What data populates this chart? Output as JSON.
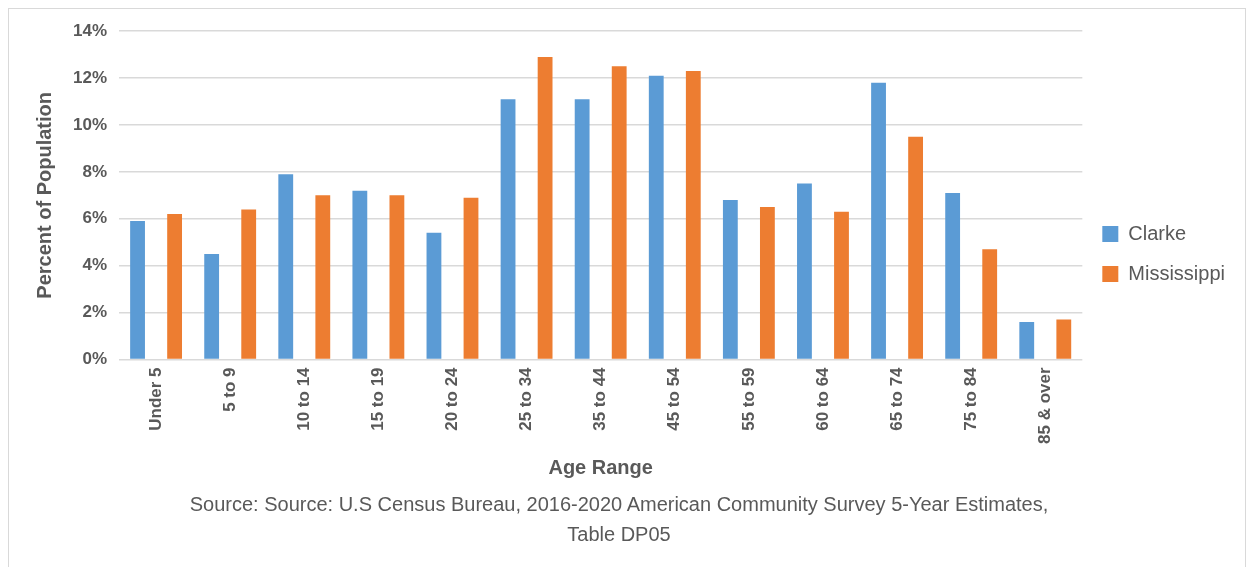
{
  "chart_data": {
    "type": "bar",
    "xlabel": "Age Range",
    "ylabel": "Percent of Population",
    "categories": [
      "Under 5",
      "5 to 9",
      "10 to 14",
      "15 to 19",
      "20 to 24",
      "25 to 34",
      "35 to 44",
      "45 to 54",
      "55 to 59",
      "60 to 64",
      "65 to 74",
      "75 to 84",
      "85 & over"
    ],
    "series": [
      {
        "name": "Clarke",
        "color": "#5b9bd5",
        "values": [
          5.9,
          4.5,
          7.9,
          7.2,
          5.4,
          11.1,
          11.1,
          12.1,
          6.8,
          7.5,
          11.8,
          7.1,
          1.6
        ]
      },
      {
        "name": "Mississippi",
        "color": "#ed7d31",
        "values": [
          6.2,
          6.4,
          7.0,
          7.0,
          6.9,
          12.9,
          12.5,
          12.3,
          6.5,
          6.3,
          9.5,
          4.7,
          1.7
        ]
      }
    ],
    "ylim": [
      0,
      14
    ],
    "yticks": [
      {
        "value": 0,
        "label": "0%"
      },
      {
        "value": 2,
        "label": "2%"
      },
      {
        "value": 4,
        "label": "4%"
      },
      {
        "value": 6,
        "label": "6%"
      },
      {
        "value": 8,
        "label": "8%"
      },
      {
        "value": 10,
        "label": "10%"
      },
      {
        "value": 12,
        "label": "12%"
      },
      {
        "value": 14,
        "label": "14%"
      }
    ],
    "grid": "y",
    "legend": "right",
    "annotations": [
      "Source: Source: U.S Census Bureau, 2016-2020 American Community Survey 5-Year Estimates, Table DP05"
    ]
  }
}
